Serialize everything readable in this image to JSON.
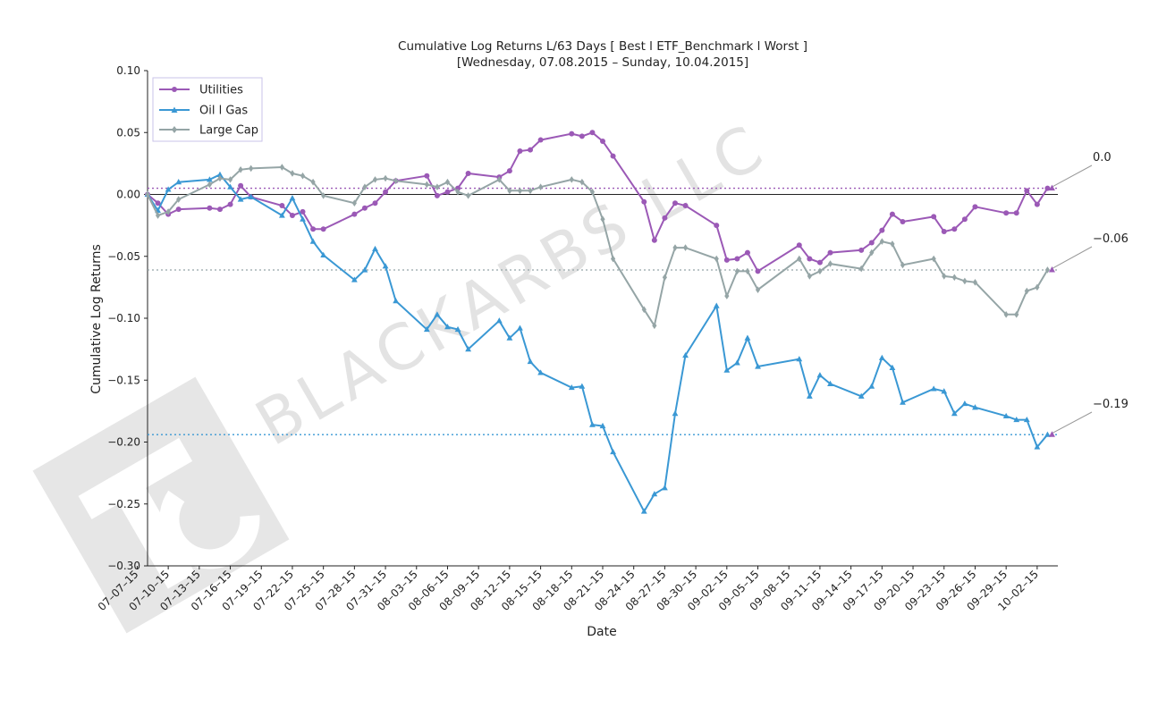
{
  "watermark": {
    "text": "BLACKARBS LLC"
  },
  "chart_data": {
    "type": "line",
    "title": "Cumulative Log Returns L/63 Days [ Best l ETF_Benchmark l Worst ]",
    "subtitle": "[Wednesday, 07.08.2015 – Sunday, 10.04.2015]",
    "xlabel": "Date",
    "ylabel": "Cumulative Log Returns",
    "ylim": [
      -0.3,
      0.1
    ],
    "yticks": [
      "0.10",
      "0.05",
      "0.00",
      "−0.05",
      "−0.10",
      "−0.15",
      "−0.20",
      "−0.25",
      "−0.30"
    ],
    "xlim": [
      "2015-07-08",
      "2015-10-04"
    ],
    "xticks": [
      "07–07–15",
      "07–10–15",
      "07–13–15",
      "07–16–15",
      "07–19–15",
      "07–22–15",
      "07–25–15",
      "07–28–15",
      "07–31–15",
      "08–03–15",
      "08–06–15",
      "08–09–15",
      "08–12–15",
      "08–15–15",
      "08–18–15",
      "08–21–15",
      "08–24–15",
      "08–27–15",
      "08–30–15",
      "09–02–15",
      "09–05–15",
      "09–08–15",
      "09–11–15",
      "09–14–15",
      "09–17–15",
      "09–20–15",
      "09–23–15",
      "09–26–15",
      "09–29–15",
      "10–02–15"
    ],
    "grid": false,
    "legend_position": "top-left",
    "series": [
      {
        "name": "Utilities",
        "color": "#9b59b6",
        "marker": "circle",
        "final_label": "0.0",
        "final_value": 0.005,
        "points": [
          [
            "2015-07-08",
            0.0
          ],
          [
            "2015-07-09",
            -0.007
          ],
          [
            "2015-07-10",
            -0.016
          ],
          [
            "2015-07-11",
            -0.012
          ],
          [
            "2015-07-14",
            -0.011
          ],
          [
            "2015-07-15",
            -0.012
          ],
          [
            "2015-07-16",
            -0.008
          ],
          [
            "2015-07-17",
            0.007
          ],
          [
            "2015-07-18",
            -0.002
          ],
          [
            "2015-07-21",
            -0.009
          ],
          [
            "2015-07-22",
            -0.017
          ],
          [
            "2015-07-23",
            -0.014
          ],
          [
            "2015-07-24",
            -0.028
          ],
          [
            "2015-07-25",
            -0.028
          ],
          [
            "2015-07-28",
            -0.016
          ],
          [
            "2015-07-29",
            -0.011
          ],
          [
            "2015-07-30",
            -0.007
          ],
          [
            "2015-07-31",
            0.002
          ],
          [
            "2015-08-01",
            0.011
          ],
          [
            "2015-08-04",
            0.015
          ],
          [
            "2015-08-05",
            -0.001
          ],
          [
            "2015-08-06",
            0.002
          ],
          [
            "2015-08-07",
            0.005
          ],
          [
            "2015-08-08",
            0.017
          ],
          [
            "2015-08-11",
            0.014
          ],
          [
            "2015-08-12",
            0.019
          ],
          [
            "2015-08-13",
            0.035
          ],
          [
            "2015-08-14",
            0.036
          ],
          [
            "2015-08-15",
            0.044
          ],
          [
            "2015-08-18",
            0.049
          ],
          [
            "2015-08-19",
            0.047
          ],
          [
            "2015-08-20",
            0.05
          ],
          [
            "2015-08-21",
            0.043
          ],
          [
            "2015-08-22",
            0.031
          ],
          [
            "2015-08-25",
            -0.006
          ],
          [
            "2015-08-26",
            -0.037
          ],
          [
            "2015-08-27",
            -0.019
          ],
          [
            "2015-08-28",
            -0.007
          ],
          [
            "2015-08-29",
            -0.009
          ],
          [
            "2015-09-01",
            -0.025
          ],
          [
            "2015-09-02",
            -0.053
          ],
          [
            "2015-09-03",
            -0.052
          ],
          [
            "2015-09-04",
            -0.047
          ],
          [
            "2015-09-05",
            -0.062
          ],
          [
            "2015-09-09",
            -0.041
          ],
          [
            "2015-09-10",
            -0.052
          ],
          [
            "2015-09-11",
            -0.055
          ],
          [
            "2015-09-12",
            -0.047
          ],
          [
            "2015-09-15",
            -0.045
          ],
          [
            "2015-09-16",
            -0.039
          ],
          [
            "2015-09-17",
            -0.029
          ],
          [
            "2015-09-18",
            -0.016
          ],
          [
            "2015-09-19",
            -0.022
          ],
          [
            "2015-09-22",
            -0.018
          ],
          [
            "2015-09-23",
            -0.03
          ],
          [
            "2015-09-24",
            -0.028
          ],
          [
            "2015-09-25",
            -0.02
          ],
          [
            "2015-09-26",
            -0.01
          ],
          [
            "2015-09-29",
            -0.015
          ],
          [
            "2015-09-30",
            -0.015
          ],
          [
            "2015-10-01",
            0.003
          ],
          [
            "2015-10-02",
            -0.008
          ],
          [
            "2015-10-03",
            0.005
          ]
        ]
      },
      {
        "name": "Oil l Gas",
        "color": "#3a98d4",
        "marker": "triangle",
        "final_label": "−0.19",
        "final_value": -0.194,
        "points": [
          [
            "2015-07-08",
            0.0
          ],
          [
            "2015-07-09",
            -0.013
          ],
          [
            "2015-07-10",
            0.004
          ],
          [
            "2015-07-11",
            0.01
          ],
          [
            "2015-07-14",
            0.012
          ],
          [
            "2015-07-15",
            0.016
          ],
          [
            "2015-07-16",
            0.006
          ],
          [
            "2015-07-17",
            -0.004
          ],
          [
            "2015-07-18",
            -0.002
          ],
          [
            "2015-07-21",
            -0.017
          ],
          [
            "2015-07-22",
            -0.003
          ],
          [
            "2015-07-23",
            -0.02
          ],
          [
            "2015-07-24",
            -0.038
          ],
          [
            "2015-07-25",
            -0.049
          ],
          [
            "2015-07-28",
            -0.069
          ],
          [
            "2015-07-29",
            -0.061
          ],
          [
            "2015-07-30",
            -0.044
          ],
          [
            "2015-07-31",
            -0.058
          ],
          [
            "2015-08-01",
            -0.086
          ],
          [
            "2015-08-04",
            -0.109
          ],
          [
            "2015-08-05",
            -0.097
          ],
          [
            "2015-08-06",
            -0.107
          ],
          [
            "2015-08-07",
            -0.109
          ],
          [
            "2015-08-08",
            -0.125
          ],
          [
            "2015-08-11",
            -0.102
          ],
          [
            "2015-08-12",
            -0.116
          ],
          [
            "2015-08-13",
            -0.108
          ],
          [
            "2015-08-14",
            -0.135
          ],
          [
            "2015-08-15",
            -0.144
          ],
          [
            "2015-08-18",
            -0.156
          ],
          [
            "2015-08-19",
            -0.155
          ],
          [
            "2015-08-20",
            -0.186
          ],
          [
            "2015-08-21",
            -0.187
          ],
          [
            "2015-08-22",
            -0.208
          ],
          [
            "2015-08-25",
            -0.256
          ],
          [
            "2015-08-26",
            -0.242
          ],
          [
            "2015-08-27",
            -0.237
          ],
          [
            "2015-08-28",
            -0.177
          ],
          [
            "2015-08-29",
            -0.13
          ],
          [
            "2015-09-01",
            -0.09
          ],
          [
            "2015-09-02",
            -0.142
          ],
          [
            "2015-09-03",
            -0.136
          ],
          [
            "2015-09-04",
            -0.116
          ],
          [
            "2015-09-05",
            -0.139
          ],
          [
            "2015-09-09",
            -0.133
          ],
          [
            "2015-09-10",
            -0.163
          ],
          [
            "2015-09-11",
            -0.146
          ],
          [
            "2015-09-12",
            -0.153
          ],
          [
            "2015-09-15",
            -0.163
          ],
          [
            "2015-09-16",
            -0.155
          ],
          [
            "2015-09-17",
            -0.132
          ],
          [
            "2015-09-18",
            -0.14
          ],
          [
            "2015-09-19",
            -0.168
          ],
          [
            "2015-09-22",
            -0.157
          ],
          [
            "2015-09-23",
            -0.159
          ],
          [
            "2015-09-24",
            -0.177
          ],
          [
            "2015-09-25",
            -0.169
          ],
          [
            "2015-09-26",
            -0.172
          ],
          [
            "2015-09-29",
            -0.179
          ],
          [
            "2015-09-30",
            -0.182
          ],
          [
            "2015-10-01",
            -0.182
          ],
          [
            "2015-10-02",
            -0.204
          ],
          [
            "2015-10-03",
            -0.194
          ]
        ]
      },
      {
        "name": "Large Cap",
        "color": "#95a5a6",
        "marker": "diamond",
        "final_label": "−0.06",
        "final_value": -0.061,
        "points": [
          [
            "2015-07-08",
            0.0
          ],
          [
            "2015-07-09",
            -0.017
          ],
          [
            "2015-07-10",
            -0.014
          ],
          [
            "2015-07-11",
            -0.004
          ],
          [
            "2015-07-14",
            0.008
          ],
          [
            "2015-07-15",
            0.013
          ],
          [
            "2015-07-16",
            0.012
          ],
          [
            "2015-07-17",
            0.02
          ],
          [
            "2015-07-18",
            0.021
          ],
          [
            "2015-07-21",
            0.022
          ],
          [
            "2015-07-22",
            0.017
          ],
          [
            "2015-07-23",
            0.015
          ],
          [
            "2015-07-24",
            0.01
          ],
          [
            "2015-07-25",
            -0.001
          ],
          [
            "2015-07-28",
            -0.007
          ],
          [
            "2015-07-29",
            0.006
          ],
          [
            "2015-07-30",
            0.012
          ],
          [
            "2015-07-31",
            0.013
          ],
          [
            "2015-08-01",
            0.011
          ],
          [
            "2015-08-04",
            0.008
          ],
          [
            "2015-08-05",
            0.006
          ],
          [
            "2015-08-06",
            0.01
          ],
          [
            "2015-08-07",
            0.002
          ],
          [
            "2015-08-08",
            -0.001
          ],
          [
            "2015-08-11",
            0.012
          ],
          [
            "2015-08-12",
            0.003
          ],
          [
            "2015-08-13",
            0.003
          ],
          [
            "2015-08-14",
            0.003
          ],
          [
            "2015-08-15",
            0.006
          ],
          [
            "2015-08-18",
            0.012
          ],
          [
            "2015-08-19",
            0.01
          ],
          [
            "2015-08-20",
            0.002
          ],
          [
            "2015-08-21",
            -0.02
          ],
          [
            "2015-08-22",
            -0.052
          ],
          [
            "2015-08-25",
            -0.093
          ],
          [
            "2015-08-26",
            -0.106
          ],
          [
            "2015-08-27",
            -0.067
          ],
          [
            "2015-08-28",
            -0.043
          ],
          [
            "2015-08-29",
            -0.043
          ],
          [
            "2015-09-01",
            -0.052
          ],
          [
            "2015-09-02",
            -0.082
          ],
          [
            "2015-09-03",
            -0.062
          ],
          [
            "2015-09-04",
            -0.062
          ],
          [
            "2015-09-05",
            -0.077
          ],
          [
            "2015-09-09",
            -0.052
          ],
          [
            "2015-09-10",
            -0.066
          ],
          [
            "2015-09-11",
            -0.062
          ],
          [
            "2015-09-12",
            -0.056
          ],
          [
            "2015-09-15",
            -0.06
          ],
          [
            "2015-09-16",
            -0.047
          ],
          [
            "2015-09-17",
            -0.038
          ],
          [
            "2015-09-18",
            -0.04
          ],
          [
            "2015-09-19",
            -0.057
          ],
          [
            "2015-09-22",
            -0.052
          ],
          [
            "2015-09-23",
            -0.066
          ],
          [
            "2015-09-24",
            -0.067
          ],
          [
            "2015-09-25",
            -0.07
          ],
          [
            "2015-09-26",
            -0.071
          ],
          [
            "2015-09-29",
            -0.097
          ],
          [
            "2015-09-30",
            -0.097
          ],
          [
            "2015-10-01",
            -0.078
          ],
          [
            "2015-10-02",
            -0.075
          ],
          [
            "2015-10-03",
            -0.061
          ]
        ]
      }
    ]
  }
}
